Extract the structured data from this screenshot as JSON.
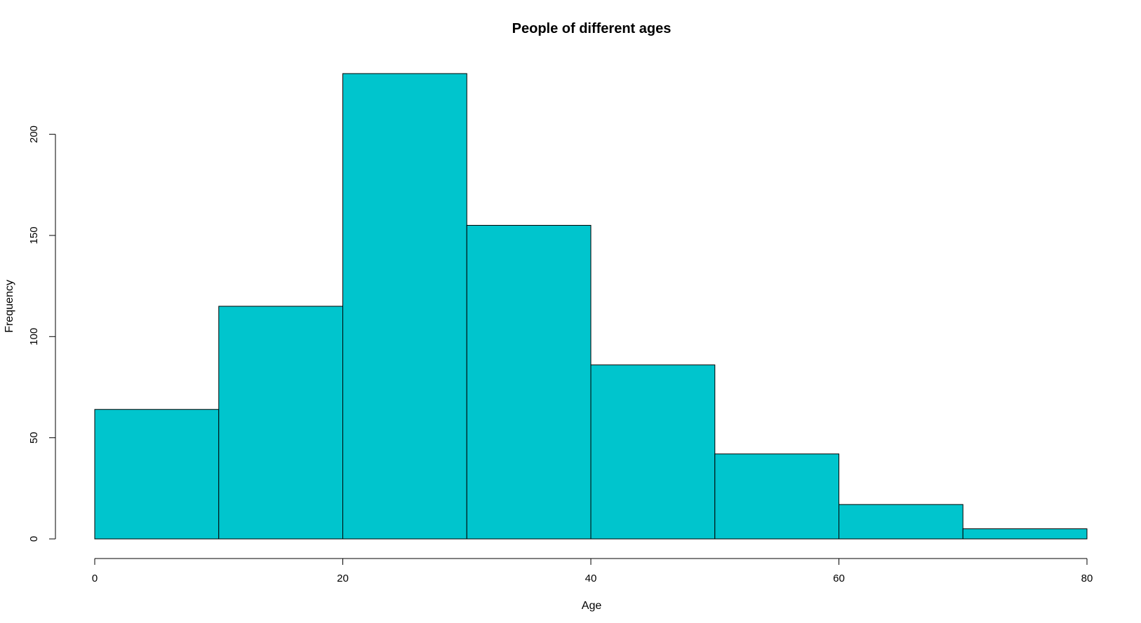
{
  "chart_data": {
    "type": "bar",
    "subtype": "histogram",
    "title": "People of different ages",
    "xlabel": "Age",
    "ylabel": "Frequency",
    "bins": [
      {
        "start": 0,
        "end": 10,
        "value": 64
      },
      {
        "start": 10,
        "end": 20,
        "value": 115
      },
      {
        "start": 20,
        "end": 30,
        "value": 230
      },
      {
        "start": 30,
        "end": 40,
        "value": 155
      },
      {
        "start": 40,
        "end": 50,
        "value": 86
      },
      {
        "start": 50,
        "end": 60,
        "value": 42
      },
      {
        "start": 60,
        "end": 70,
        "value": 17
      },
      {
        "start": 70,
        "end": 80,
        "value": 5
      }
    ],
    "xlim": [
      0,
      80
    ],
    "ylim": [
      0,
      230
    ],
    "x_ticks": [
      0,
      20,
      40,
      60,
      80
    ],
    "y_ticks": [
      0,
      50,
      100,
      150,
      200
    ],
    "grid": false,
    "legend": "none",
    "colors": {
      "bar_fill": "#00C5CD",
      "bar_stroke": "#000000",
      "axis": "#000000",
      "background": "#ffffff"
    }
  }
}
